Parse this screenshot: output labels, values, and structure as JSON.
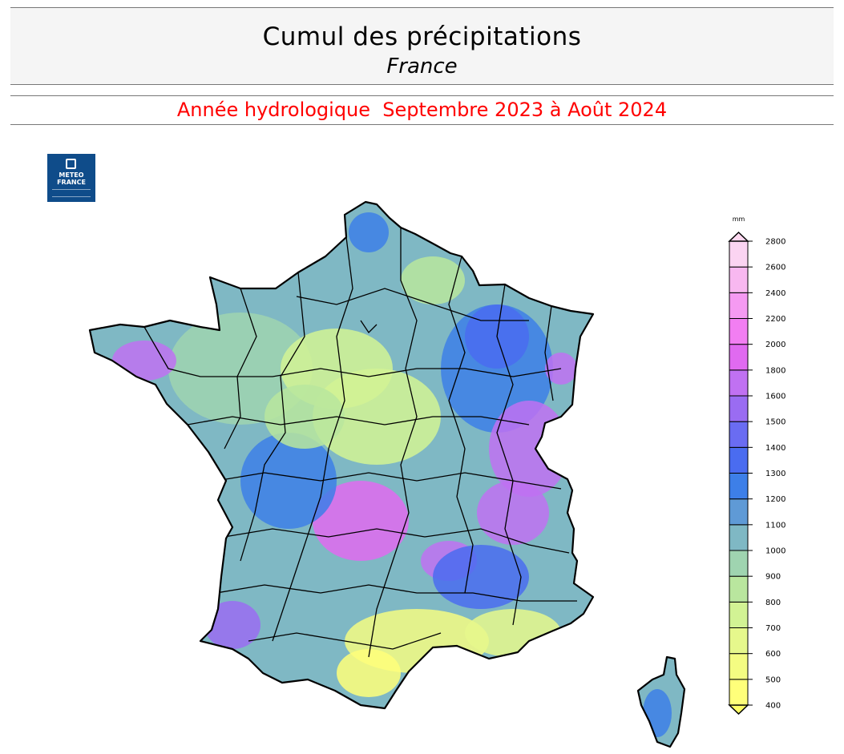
{
  "header": {
    "title": "Cumul des précipitations",
    "subtitle": "France",
    "period": "Année hydrologique  Septembre 2023 à Août 2024"
  },
  "logo": {
    "line1": "METEO",
    "line2": "FRANCE"
  },
  "legend": {
    "unit": "mm",
    "levels": [
      400,
      500,
      600,
      700,
      800,
      900,
      1000,
      1100,
      1200,
      1300,
      1400,
      1500,
      1600,
      1800,
      2000,
      2200,
      2400,
      2600,
      2800
    ],
    "colors": [
      "#ffff7a",
      "#f4fc82",
      "#e6f88c",
      "#d2f394",
      "#b9e69e",
      "#9fd4b0",
      "#7fb8c4",
      "#5f9ad6",
      "#3d7fe8",
      "#4a6cf0",
      "#6a6cf2",
      "#9a6cf2",
      "#c071f2",
      "#e06af0",
      "#f27ef2",
      "#f59af2",
      "#f8b8f0",
      "#fbd4f2"
    ],
    "under_color": "#ffff66",
    "over_color": "#ffd8f0"
  },
  "map": {
    "base_color": "#7fb8c4"
  }
}
